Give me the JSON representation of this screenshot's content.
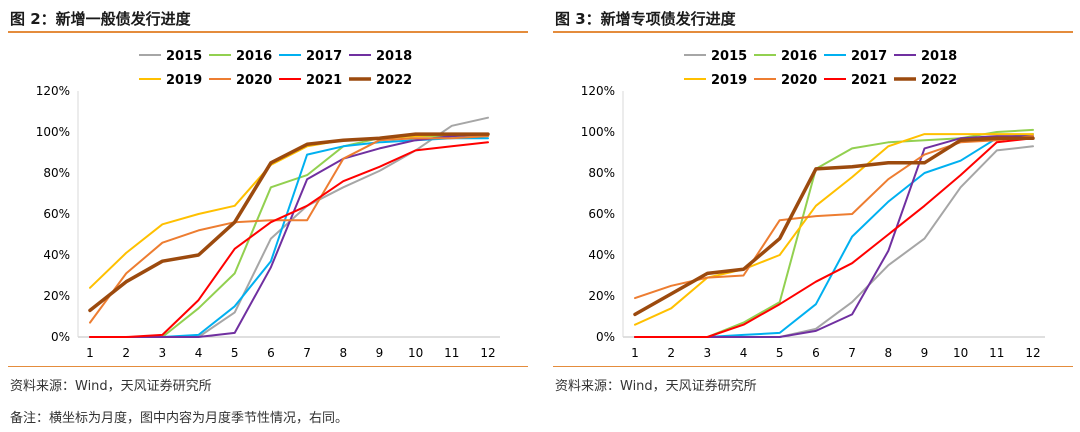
{
  "footnote_source_left": "资料来源：Wind，天风证券研究所",
  "footnote_source_right": "资料来源：Wind，天风证券研究所",
  "note": "备注：横坐标为月度，图中内容为月度季节性情况，右同。",
  "chart_data": [
    {
      "type": "line",
      "title": "图 2：新增一般债发行进度",
      "xlabel": "",
      "ylabel": "",
      "x": [
        1,
        2,
        3,
        4,
        5,
        6,
        7,
        8,
        9,
        10,
        11,
        12
      ],
      "ylim": [
        0,
        120
      ],
      "yticks": [
        "0%",
        "20%",
        "40%",
        "60%",
        "80%",
        "100%",
        "120%"
      ],
      "grid": false,
      "legend_position": "top",
      "series": [
        {
          "name": "2015",
          "color": "#a6a6a6",
          "width": 2,
          "values": [
            0,
            0,
            0,
            0,
            12,
            48,
            64,
            73,
            81,
            91,
            103,
            107
          ]
        },
        {
          "name": "2016",
          "color": "#92d050",
          "width": 2,
          "values": [
            0,
            0,
            0,
            14,
            31,
            73,
            79,
            93,
            97,
            98,
            98,
            98
          ]
        },
        {
          "name": "2017",
          "color": "#00b0f0",
          "width": 2,
          "values": [
            0,
            0,
            0,
            1,
            15,
            37,
            89,
            93,
            95,
            96,
            97,
            97
          ]
        },
        {
          "name": "2018",
          "color": "#7030a0",
          "width": 2,
          "values": [
            0,
            0,
            0,
            0,
            2,
            34,
            77,
            87,
            92,
            96,
            98,
            99
          ]
        },
        {
          "name": "2019",
          "color": "#ffc000",
          "width": 2,
          "values": [
            24,
            41,
            55,
            60,
            64,
            84,
            93,
            96,
            97,
            98,
            99,
            99
          ]
        },
        {
          "name": "2020",
          "color": "#ed7d31",
          "width": 2,
          "values": [
            7,
            31,
            46,
            52,
            56,
            57,
            57,
            87,
            96,
            97,
            97,
            98
          ]
        },
        {
          "name": "2021",
          "color": "#ff0000",
          "width": 2,
          "values": [
            0,
            0,
            1,
            18,
            43,
            56,
            64,
            76,
            83,
            91,
            93,
            95
          ]
        },
        {
          "name": "2022",
          "color": "#9c4a0e",
          "width": 3.5,
          "values": [
            13,
            27,
            37,
            40,
            56,
            85,
            94,
            96,
            97,
            99,
            99,
            99
          ]
        }
      ]
    },
    {
      "type": "line",
      "title": "图 3：新增专项债发行进度",
      "xlabel": "",
      "ylabel": "",
      "x": [
        1,
        2,
        3,
        4,
        5,
        6,
        7,
        8,
        9,
        10,
        11,
        12
      ],
      "ylim": [
        0,
        120
      ],
      "yticks": [
        "0%",
        "20%",
        "40%",
        "60%",
        "80%",
        "100%",
        "120%"
      ],
      "grid": false,
      "legend_position": "top",
      "series": [
        {
          "name": "2015",
          "color": "#a6a6a6",
          "width": 2,
          "values": [
            0,
            0,
            0,
            0,
            0,
            4,
            17,
            35,
            48,
            73,
            91,
            93
          ]
        },
        {
          "name": "2016",
          "color": "#92d050",
          "width": 2,
          "values": [
            0,
            0,
            0,
            7,
            17,
            82,
            92,
            95,
            96,
            97,
            100,
            101
          ]
        },
        {
          "name": "2017",
          "color": "#00b0f0",
          "width": 2,
          "values": [
            0,
            0,
            0,
            1,
            2,
            16,
            49,
            66,
            80,
            86,
            97,
            99
          ]
        },
        {
          "name": "2018",
          "color": "#7030a0",
          "width": 2,
          "values": [
            0,
            0,
            0,
            0,
            0,
            3,
            11,
            42,
            92,
            97,
            98,
            98
          ]
        },
        {
          "name": "2019",
          "color": "#ffc000",
          "width": 2,
          "values": [
            6,
            14,
            29,
            33,
            40,
            64,
            78,
            93,
            99,
            99,
            99,
            99
          ]
        },
        {
          "name": "2020",
          "color": "#ed7d31",
          "width": 2,
          "values": [
            19,
            25,
            29,
            30,
            57,
            59,
            60,
            77,
            89,
            95,
            96,
            98
          ]
        },
        {
          "name": "2021",
          "color": "#ff0000",
          "width": 2,
          "values": [
            0,
            0,
            0,
            6,
            16,
            27,
            36,
            50,
            64,
            79,
            95,
            97
          ]
        },
        {
          "name": "2022",
          "color": "#9c4a0e",
          "width": 3.5,
          "values": [
            11,
            21,
            31,
            33,
            48,
            82,
            83,
            85,
            85,
            96,
            97,
            97
          ]
        }
      ]
    }
  ]
}
